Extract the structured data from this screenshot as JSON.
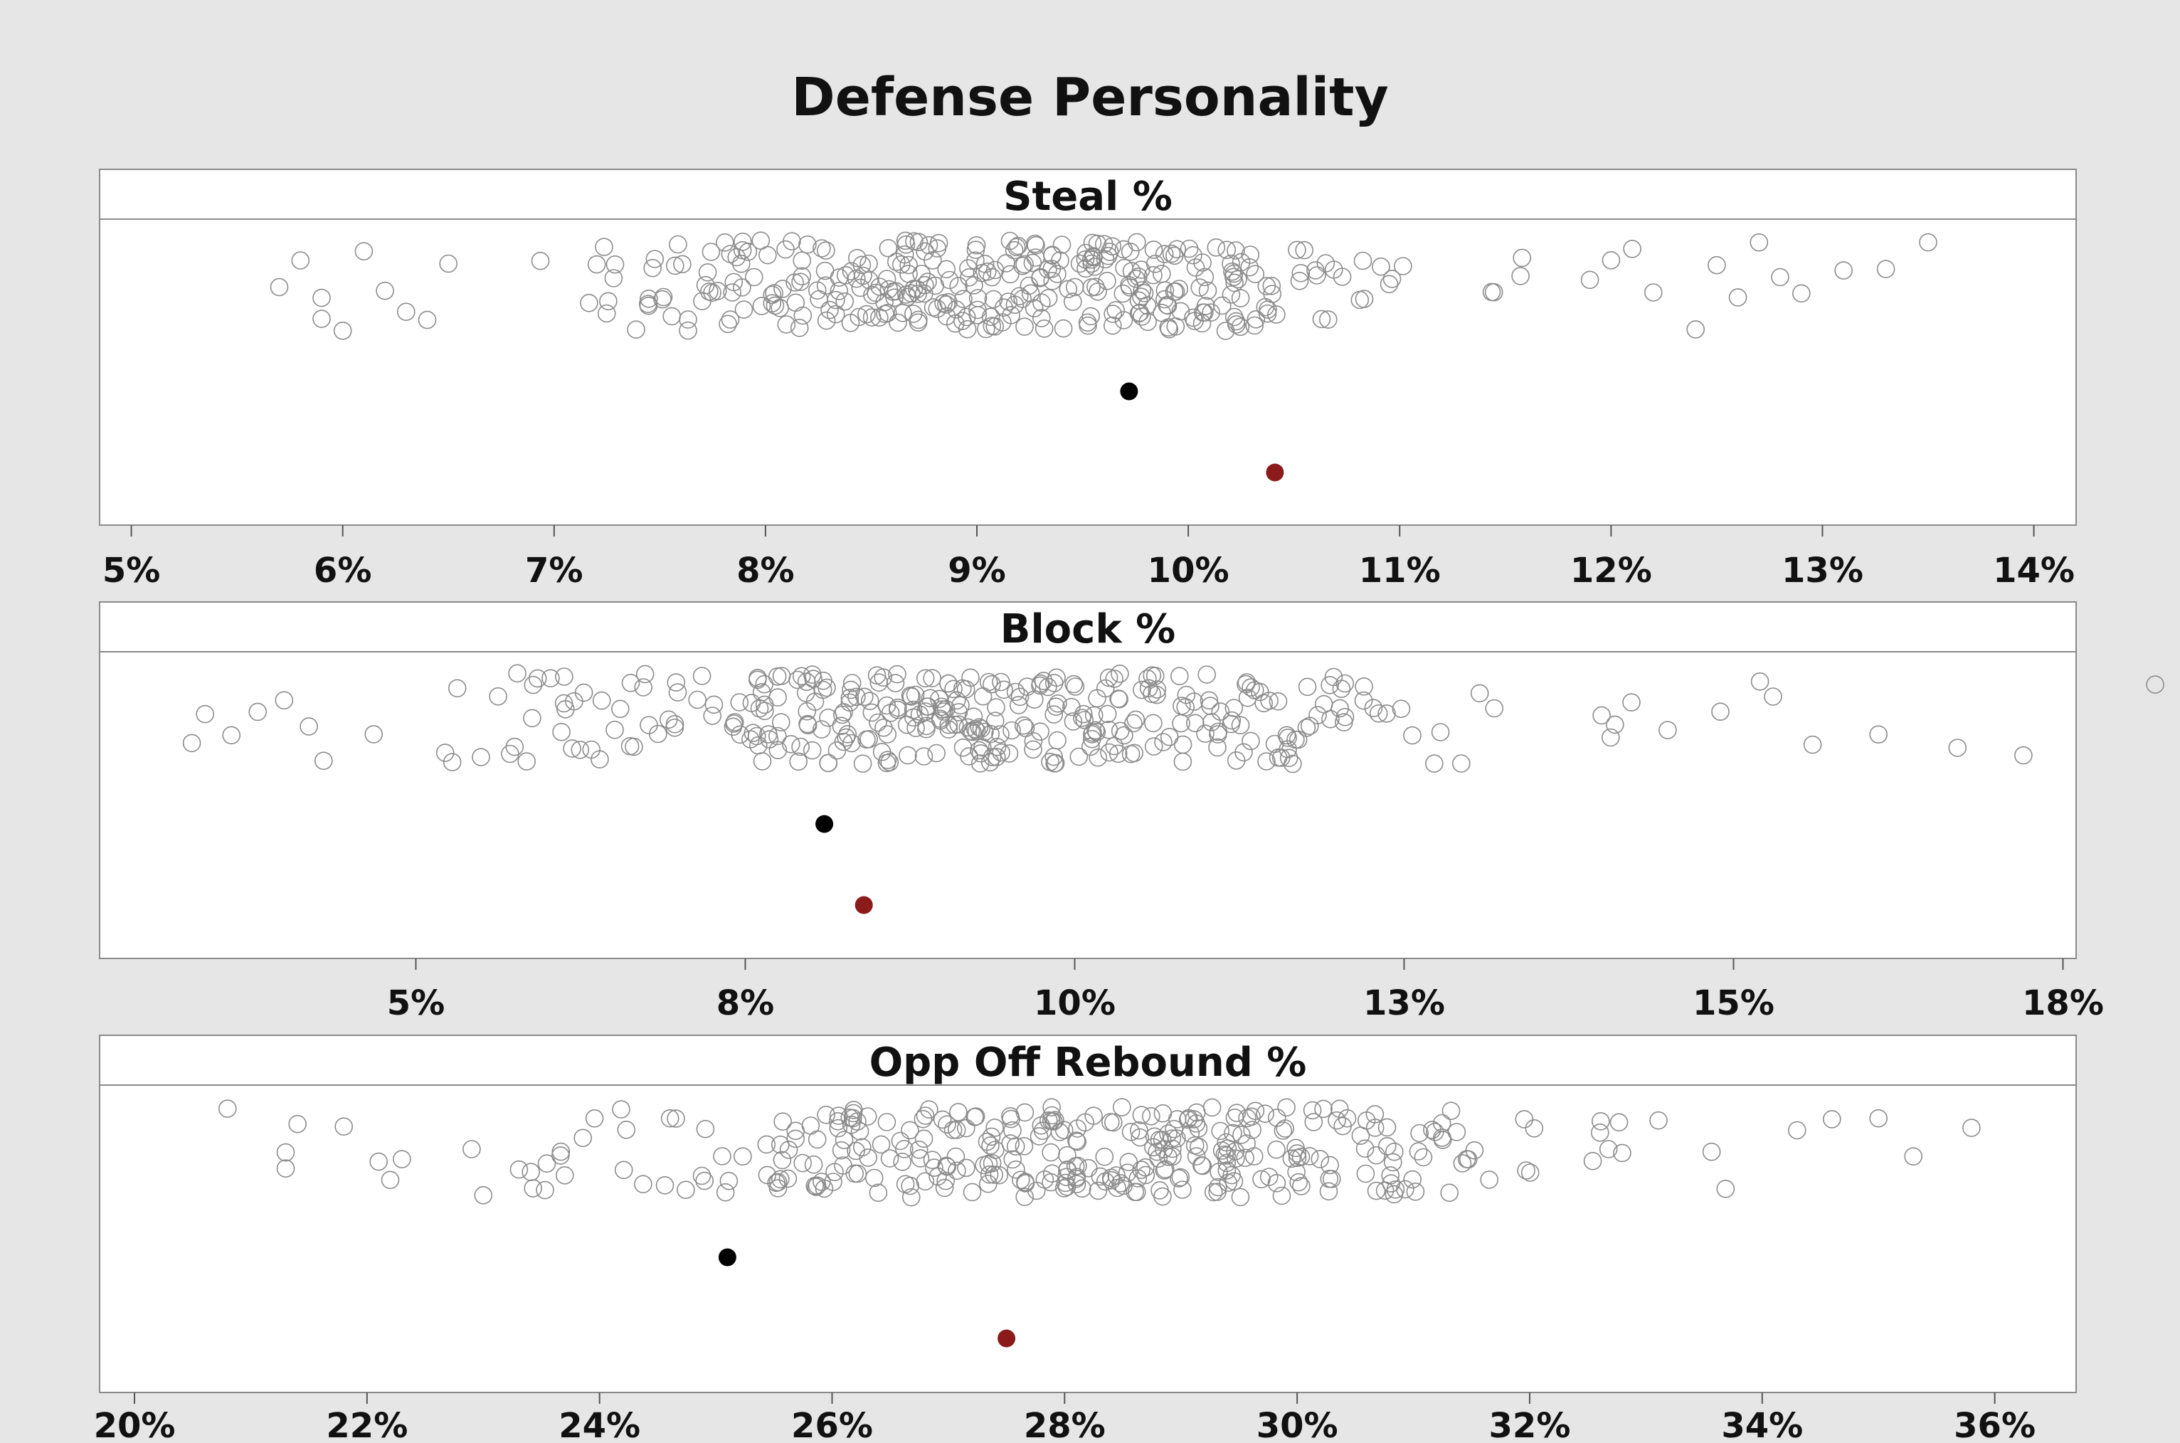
{
  "chart_data": {
    "type": "scatter",
    "title": "Defense Personality",
    "colors": {
      "dot_outline": "#8c8c8c",
      "marker_black": "#000000",
      "marker_red": "#8b1a1a",
      "background": "#e6e6e6",
      "panel": "#ffffff"
    },
    "panels": [
      {
        "title": "Steal %",
        "xlim": [
          4.85,
          14.2
        ],
        "ticks": [
          {
            "value": 5,
            "label": "5%"
          },
          {
            "value": 6,
            "label": "6%"
          },
          {
            "value": 7,
            "label": "7%"
          },
          {
            "value": 8,
            "label": "8%"
          },
          {
            "value": 9,
            "label": "9%"
          },
          {
            "value": 10,
            "label": "10%"
          },
          {
            "value": 11,
            "label": "11%"
          },
          {
            "value": 12,
            "label": "12%"
          },
          {
            "value": 13,
            "label": "13%"
          },
          {
            "value": 14,
            "label": "14%"
          }
        ],
        "distribution": {
          "min": 5.7,
          "max": 13.5,
          "center": 9.2,
          "spread": 1.35,
          "count": 340
        },
        "points_extra": [
          5.7,
          5.8,
          5.9,
          5.9,
          6.0,
          6.1,
          6.2,
          6.3,
          6.4,
          6.5,
          11.9,
          12.0,
          12.1,
          12.2,
          12.4,
          12.5,
          12.6,
          12.7,
          12.8,
          12.9,
          13.1,
          13.3,
          13.5
        ],
        "markers": [
          {
            "value": 9.72,
            "color": "black",
            "row": 0
          },
          {
            "value": 10.41,
            "color": "red",
            "row": 1
          }
        ]
      },
      {
        "title": "Block %",
        "xlim": [
          2.6,
          17.6
        ],
        "ticks": [
          {
            "value": 5,
            "label": "5%"
          },
          {
            "value": 7.5,
            "label": "8%"
          },
          {
            "value": 10,
            "label": "10%"
          },
          {
            "value": 12.5,
            "label": "13%"
          },
          {
            "value": 15,
            "label": "15%"
          },
          {
            "value": 17.5,
            "label": "18%"
          }
        ],
        "distribution": {
          "min": 3.3,
          "max": 18.2,
          "center": 9.4,
          "spread": 2.6,
          "count": 340
        },
        "points_extra": [
          3.3,
          3.4,
          3.6,
          3.8,
          4.0,
          4.3,
          14.1,
          14.5,
          14.9,
          15.3,
          15.6,
          16.1,
          16.7,
          17.2,
          18.2
        ],
        "markers": [
          {
            "value": 8.1,
            "color": "black",
            "row": 0
          },
          {
            "value": 8.4,
            "color": "red",
            "row": 1
          }
        ]
      },
      {
        "title": "Opp Off Rebound %",
        "xlim": [
          19.7,
          36.7
        ],
        "ticks": [
          {
            "value": 20,
            "label": "20%"
          },
          {
            "value": 22,
            "label": "22%"
          },
          {
            "value": 24,
            "label": "24%"
          },
          {
            "value": 26,
            "label": "26%"
          },
          {
            "value": 28,
            "label": "28%"
          },
          {
            "value": 30,
            "label": "30%"
          },
          {
            "value": 32,
            "label": "32%"
          },
          {
            "value": 34,
            "label": "34%"
          },
          {
            "value": 36,
            "label": "36%"
          }
        ],
        "distribution": {
          "min": 20.8,
          "max": 35.8,
          "center": 28.2,
          "spread": 3.0,
          "count": 340
        },
        "points_extra": [
          20.8,
          21.3,
          21.3,
          21.8,
          22.1,
          22.2,
          22.3,
          22.9,
          23.0,
          34.3,
          34.6,
          35.0,
          35.3,
          35.8
        ],
        "markers": [
          {
            "value": 25.1,
            "color": "black",
            "row": 0
          },
          {
            "value": 27.5,
            "color": "red",
            "row": 1
          }
        ]
      }
    ]
  }
}
